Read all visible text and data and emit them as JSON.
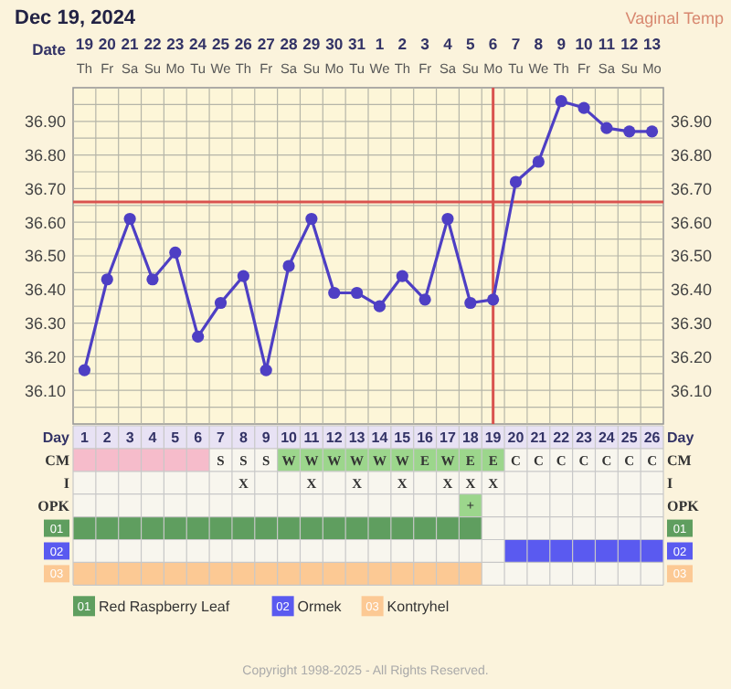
{
  "chart_data": [
    {
      "type": "line",
      "title": "Dec 19, 2024",
      "xlabel": "Date",
      "categories": [
        "19\nTh",
        "20\nFr",
        "21\nSa",
        "22\nSu",
        "23\nMo",
        "24\nTu",
        "25\nWe",
        "26\nTh",
        "27\nFr",
        "28\nSa",
        "29\nSu",
        "30\nMo",
        "31\nTu",
        "1\nWe",
        "2\nTh",
        "3\nFr",
        "4\nSa",
        "5\nSu",
        "6\nMo",
        "7\nTu",
        "8\nWe",
        "9\nTh",
        "10\nFr",
        "11\nSa",
        "12\nSu",
        "13\nMo"
      ],
      "series": [
        {
          "color": "#4e3fc4",
          "values": [
            36.16,
            36.43,
            36.61,
            36.43,
            36.51,
            36.26,
            36.36,
            36.44,
            36.16,
            36.47,
            36.61,
            36.39,
            36.39,
            36.35,
            36.44,
            36.37,
            36.61,
            36.36,
            36.37,
            36.72,
            36.78,
            36.96,
            36.94,
            36.88,
            36.87,
            36.87
          ]
        }
      ],
      "ylim": [
        36.0,
        37.0
      ],
      "yticks": [
        {
          "value": 36.05,
          "label": null
        },
        {
          "value": 36.1,
          "label": "36.10"
        },
        {
          "value": 36.15,
          "label": null
        },
        {
          "value": 36.2,
          "label": "36.20"
        },
        {
          "value": 36.25,
          "label": null
        },
        {
          "value": 36.3,
          "label": "36.30"
        },
        {
          "value": 36.35,
          "label": null
        },
        {
          "value": 36.4,
          "label": "36.40"
        },
        {
          "value": 36.45,
          "label": null
        },
        {
          "value": 36.5,
          "label": "36.50"
        },
        {
          "value": 36.55,
          "label": null
        },
        {
          "value": 36.6,
          "label": "36.60"
        },
        {
          "value": 36.65,
          "label": null
        },
        {
          "value": 36.7,
          "label": "36.70"
        },
        {
          "value": 36.75,
          "label": null
        },
        {
          "value": 36.8,
          "label": "36.80"
        },
        {
          "value": 36.85,
          "label": null
        },
        {
          "value": 36.9,
          "label": "36.90"
        },
        {
          "value": 36.95,
          "label": null
        }
      ],
      "y2lim": [
        36.0,
        37.0
      ],
      "y2ticks": [
        {
          "value": 36.1,
          "label": "36.10"
        },
        {
          "value": 36.2,
          "label": "36.20"
        },
        {
          "value": 36.3,
          "label": "36.30"
        },
        {
          "value": 36.4,
          "label": "36.40"
        },
        {
          "value": 36.5,
          "label": "36.50"
        },
        {
          "value": 36.6,
          "label": "36.60"
        },
        {
          "value": 36.7,
          "label": "36.70"
        },
        {
          "value": 36.8,
          "label": "36.80"
        },
        {
          "value": 36.9,
          "label": "36.90"
        }
      ],
      "ref_lines": [
        {
          "axis": "y",
          "value": 36.66,
          "color": "#d9534f"
        },
        {
          "axis": "x",
          "value": "6\nMo",
          "color": "#d9534f"
        }
      ],
      "grid": true,
      "marker": "circle",
      "annotations": [
        "Vaginal Temp",
        "Copyright 1998-2025 - All Rights Reserved."
      ]
    },
    {
      "type": "bar",
      "orientation": "horizontal",
      "xlabel": "Day",
      "categories": [
        "CM",
        "I",
        "OPK",
        "01",
        "02",
        "03"
      ],
      "y2_categories": [
        "CM",
        "I",
        "OPK",
        "01",
        "02",
        "03"
      ],
      "xlim": [
        0.5,
        26.5
      ],
      "xticks": [
        1,
        2,
        3,
        4,
        5,
        6,
        7,
        8,
        9,
        10,
        11,
        12,
        13,
        14,
        15,
        16,
        17,
        18,
        19,
        20,
        21,
        22,
        23,
        24,
        25,
        26
      ],
      "series": [
        {
          "color": "#f6bccb",
          "values": [
            6,
            null,
            null,
            null,
            null,
            null
          ],
          "base": [
            0.5,
            null,
            null,
            null,
            null,
            null
          ]
        },
        {
          "color": "#9cd68c",
          "values": [
            10,
            null,
            1,
            null,
            null,
            null
          ],
          "base": [
            9.5,
            null,
            17.5,
            null,
            null,
            null
          ]
        },
        {
          "name": "Red Raspberry Leaf",
          "color": "#5f9e5f",
          "values": [
            null,
            null,
            null,
            18,
            null,
            null
          ],
          "base": [
            null,
            null,
            null,
            0.5,
            null,
            null
          ]
        },
        {
          "name": "Ormek",
          "color": "#5a5af0",
          "values": [
            null,
            null,
            null,
            null,
            7,
            null
          ],
          "base": [
            null,
            null,
            null,
            null,
            19.5,
            null
          ]
        },
        {
          "name": "Kontryhel",
          "color": "#fcc994",
          "values": [
            null,
            null,
            null,
            null,
            null,
            18
          ],
          "base": [
            null,
            null,
            null,
            null,
            null,
            0.5
          ]
        }
      ],
      "cell_labels": [
        [
          null,
          null,
          null,
          null,
          null,
          null,
          "S",
          "S",
          "S",
          "W",
          "W",
          "W",
          "W",
          "W",
          "W",
          "E",
          "W",
          "E",
          "E",
          "C",
          "C",
          "C",
          "C",
          "C",
          "C",
          "C"
        ],
        [
          null,
          null,
          null,
          null,
          null,
          null,
          null,
          "X",
          null,
          null,
          "X",
          null,
          "X",
          null,
          "X",
          null,
          "X",
          "X",
          "X",
          null,
          null,
          null,
          null,
          null,
          null,
          null
        ],
        [
          null,
          null,
          null,
          null,
          null,
          null,
          null,
          null,
          null,
          null,
          null,
          null,
          null,
          null,
          null,
          null,
          null,
          "+",
          null,
          null,
          null,
          null,
          null,
          null,
          null,
          null
        ],
        [
          null,
          null,
          null,
          null,
          null,
          null,
          null,
          null,
          null,
          null,
          null,
          null,
          null,
          null,
          null,
          null,
          null,
          null,
          null,
          null,
          null,
          null,
          null,
          null,
          null,
          null
        ],
        [
          null,
          null,
          null,
          null,
          null,
          null,
          null,
          null,
          null,
          null,
          null,
          null,
          null,
          null,
          null,
          null,
          null,
          null,
          null,
          null,
          null,
          null,
          null,
          null,
          null,
          null
        ],
        [
          null,
          null,
          null,
          null,
          null,
          null,
          null,
          null,
          null,
          null,
          null,
          null,
          null,
          null,
          null,
          null,
          null,
          null,
          null,
          null,
          null,
          null,
          null,
          null,
          null,
          null
        ]
      ],
      "grid": true,
      "legend": "bottom"
    }
  ]
}
